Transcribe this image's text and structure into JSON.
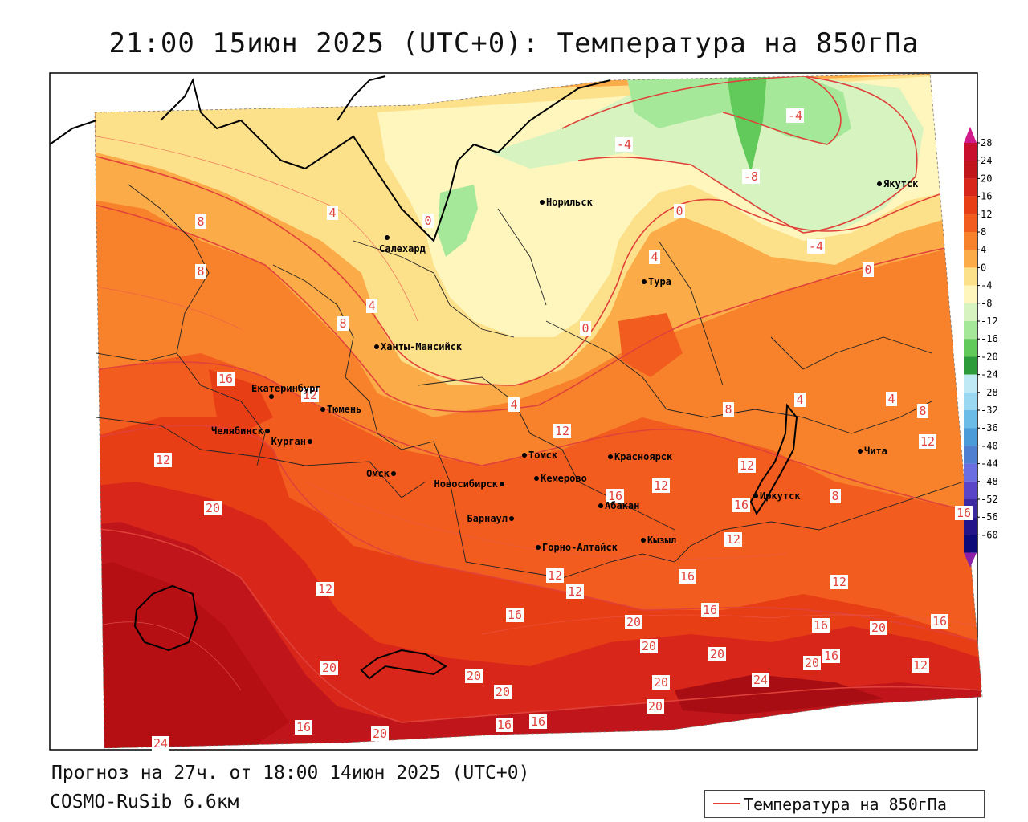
{
  "title": "21:00 15июн 2025 (UTC+0): Температура на 850гПа",
  "forecast_line": "Прогноз на 27ч. от 18:00 14июн 2025 (UTC+0)",
  "model_line": "COSMO-RuSib 6.6км",
  "legend_label": "Температура на 850гПа",
  "colorbar": {
    "ticks": [
      "28",
      "24",
      "20",
      "16",
      "12",
      "8",
      "4",
      "0",
      "-4",
      "-8",
      "-12",
      "-16",
      "-20",
      "-24",
      "-28",
      "-32",
      "-36",
      "-40",
      "-44",
      "-48",
      "-52",
      "-56",
      "-60"
    ],
    "colors": [
      "#c8102e",
      "#c0151a",
      "#d8261a",
      "#e83e16",
      "#f25c1f",
      "#f7822b",
      "#fbab47",
      "#fde08a",
      "#fef6bd",
      "#d6f3c0",
      "#a6e89a",
      "#62c95b",
      "#2e9b3a",
      "#bfe9f5",
      "#9ad8f2",
      "#6bbde8",
      "#4a9bd8",
      "#4f7fd1",
      "#6a6ee0",
      "#5a45c8",
      "#3c2aa0",
      "#24148a",
      "#0b0a78"
    ],
    "top_cap_color": "#d21a8a",
    "bottom_cap_color": "#8a1fa8"
  },
  "cities": [
    {
      "name": "Норильск"
    },
    {
      "name": "Якутск"
    },
    {
      "name": "Салехард"
    },
    {
      "name": "Тура"
    },
    {
      "name": "Ханты-Мансийск"
    },
    {
      "name": "Екатеринбург"
    },
    {
      "name": "Тюмень"
    },
    {
      "name": "Челябинск"
    },
    {
      "name": "Курган"
    },
    {
      "name": "Омск"
    },
    {
      "name": "Томск"
    },
    {
      "name": "Красноярск"
    },
    {
      "name": "Новосибирск"
    },
    {
      "name": "Кемерово"
    },
    {
      "name": "Абакан"
    },
    {
      "name": "Барнаул"
    },
    {
      "name": "Иркутск"
    },
    {
      "name": "Чита"
    },
    {
      "name": "Горно-Алтайск"
    },
    {
      "name": "Кызыл"
    }
  ],
  "contour_labels": [
    "-4",
    "-4",
    "-8",
    "-4",
    "0",
    "0",
    "0",
    "4",
    "8",
    "8",
    "4",
    "0",
    "4",
    "4",
    "8",
    "8",
    "16",
    "12",
    "12",
    "4",
    "4",
    "12",
    "8",
    "8",
    "12",
    "20",
    "12",
    "12",
    "12",
    "16",
    "12",
    "16",
    "16",
    "12",
    "16",
    "16",
    "12",
    "16",
    "12",
    "20",
    "16",
    "20",
    "16",
    "20",
    "20",
    "16",
    "20",
    "12",
    "20",
    "20",
    "24",
    "20",
    "20",
    "20",
    "16",
    "16",
    "16",
    "20",
    "24"
  ]
}
